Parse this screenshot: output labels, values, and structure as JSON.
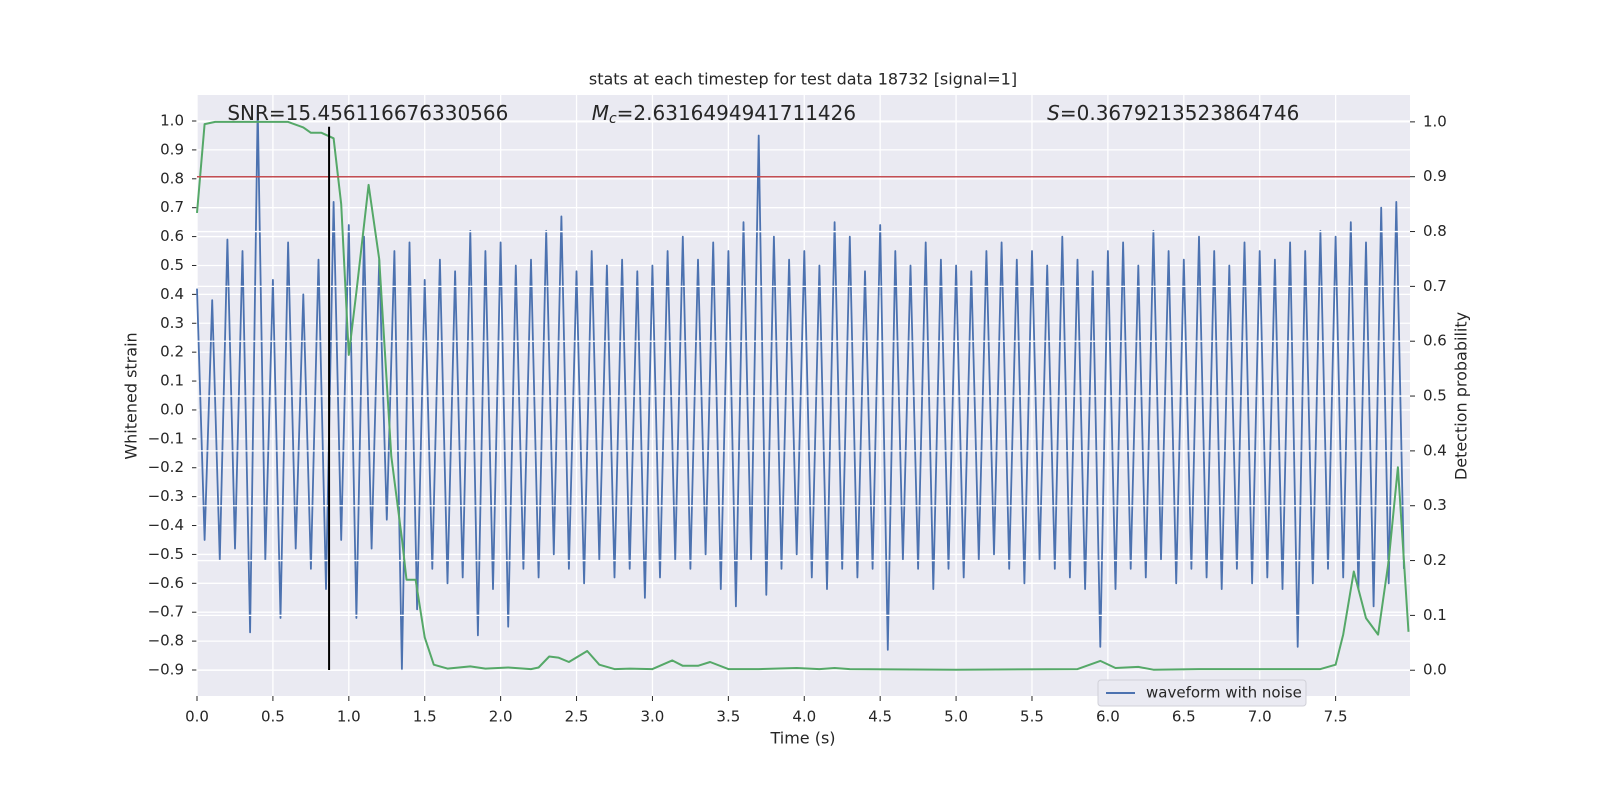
{
  "chart_data": {
    "type": "line",
    "title": "stats at each timestep for test data 18732 [signal=1]",
    "xlabel": "Time (s)",
    "ylabel": "Whitened strain",
    "y2label": "Detection probability",
    "xlim": [
      0,
      7.99
    ],
    "ylim": [
      -0.99,
      1.09
    ],
    "y2lim": [
      -0.047,
      1.049
    ],
    "grid": true,
    "legend": "lower right",
    "xticks": [
      {
        "value": 0,
        "label": "0.0"
      },
      {
        "value": 0.5,
        "label": "0.5"
      },
      {
        "value": 1,
        "label": "1.0"
      },
      {
        "value": 1.5,
        "label": "1.5"
      },
      {
        "value": 2,
        "label": "2.0"
      },
      {
        "value": 2.5,
        "label": "2.5"
      },
      {
        "value": 3,
        "label": "3.0"
      },
      {
        "value": 3.5,
        "label": "3.5"
      },
      {
        "value": 4,
        "label": "4.0"
      },
      {
        "value": 4.5,
        "label": "4.5"
      },
      {
        "value": 5,
        "label": "5.0"
      },
      {
        "value": 5.5,
        "label": "5.5"
      },
      {
        "value": 6,
        "label": "6.0"
      },
      {
        "value": 6.5,
        "label": "6.5"
      },
      {
        "value": 7,
        "label": "7.0"
      },
      {
        "value": 7.5,
        "label": "7.5"
      }
    ],
    "yticks": [
      {
        "value": -0.9,
        "label": "−0.9"
      },
      {
        "value": -0.8,
        "label": "−0.8"
      },
      {
        "value": -0.7,
        "label": "−0.7"
      },
      {
        "value": -0.6,
        "label": "−0.6"
      },
      {
        "value": -0.5,
        "label": "−0.5"
      },
      {
        "value": -0.4,
        "label": "−0.4"
      },
      {
        "value": -0.3,
        "label": "−0.3"
      },
      {
        "value": -0.2,
        "label": "−0.2"
      },
      {
        "value": -0.1,
        "label": "−0.1"
      },
      {
        "value": 0,
        "label": "0.0"
      },
      {
        "value": 0.1,
        "label": "0.1"
      },
      {
        "value": 0.2,
        "label": "0.2"
      },
      {
        "value": 0.3,
        "label": "0.3"
      },
      {
        "value": 0.4,
        "label": "0.4"
      },
      {
        "value": 0.5,
        "label": "0.5"
      },
      {
        "value": 0.6,
        "label": "0.6"
      },
      {
        "value": 0.7,
        "label": "0.7"
      },
      {
        "value": 0.8,
        "label": "0.8"
      },
      {
        "value": 0.9,
        "label": "0.9"
      },
      {
        "value": 1,
        "label": "1.0"
      }
    ],
    "y2ticks": [
      {
        "value": 0,
        "label": "0.0"
      },
      {
        "value": 0.1,
        "label": "0.1"
      },
      {
        "value": 0.2,
        "label": "0.2"
      },
      {
        "value": 0.3,
        "label": "0.3"
      },
      {
        "value": 0.4,
        "label": "0.4"
      },
      {
        "value": 0.5,
        "label": "0.5"
      },
      {
        "value": 0.6,
        "label": "0.6"
      },
      {
        "value": 0.7,
        "label": "0.7"
      },
      {
        "value": 0.8,
        "label": "0.8"
      },
      {
        "value": 0.9,
        "label": "0.9"
      },
      {
        "value": 1,
        "label": "1.0"
      }
    ],
    "series": [
      {
        "name": "waveform with noise",
        "color": "#4c72b0",
        "x": [
          0,
          0.05,
          0.1,
          0.15,
          0.2,
          0.25,
          0.3,
          0.35,
          0.4,
          0.45,
          0.5,
          0.55,
          0.6,
          0.65,
          0.7,
          0.75,
          0.8,
          0.85,
          0.9,
          0.95,
          1,
          1.05,
          1.1,
          1.15,
          1.2,
          1.25,
          1.3,
          1.35,
          1.4,
          1.45,
          1.5,
          1.55,
          1.6,
          1.65,
          1.7,
          1.75,
          1.8,
          1.85,
          1.9,
          1.95,
          2,
          2.05,
          2.1,
          2.15,
          2.2,
          2.25,
          2.3,
          2.35,
          2.4,
          2.45,
          2.5,
          2.55,
          2.6,
          2.65,
          2.7,
          2.75,
          2.8,
          2.85,
          2.9,
          2.95,
          3,
          3.05,
          3.1,
          3.15,
          3.2,
          3.25,
          3.3,
          3.35,
          3.4,
          3.45,
          3.5,
          3.55,
          3.6,
          3.65,
          3.7,
          3.75,
          3.8,
          3.85,
          3.9,
          3.95,
          4,
          4.05,
          4.1,
          4.15,
          4.2,
          4.25,
          4.3,
          4.35,
          4.4,
          4.45,
          4.5,
          4.55,
          4.6,
          4.65,
          4.7,
          4.75,
          4.8,
          4.85,
          4.9,
          4.95,
          5,
          5.05,
          5.1,
          5.15,
          5.2,
          5.25,
          5.3,
          5.35,
          5.4,
          5.45,
          5.5,
          5.55,
          5.6,
          5.65,
          5.7,
          5.75,
          5.8,
          5.85,
          5.9,
          5.95,
          6,
          6.05,
          6.1,
          6.15,
          6.2,
          6.25,
          6.3,
          6.35,
          6.4,
          6.45,
          6.5,
          6.55,
          6.6,
          6.65,
          6.7,
          6.75,
          6.8,
          6.85,
          6.9,
          6.95,
          7,
          7.05,
          7.1,
          7.15,
          7.2,
          7.25,
          7.3,
          7.35,
          7.4,
          7.45,
          7.5,
          7.55,
          7.6,
          7.65,
          7.7,
          7.75,
          7.8,
          7.85,
          7.9,
          7.95
        ],
        "values": [
          0.42,
          -0.45,
          0.38,
          -0.52,
          0.59,
          -0.48,
          0.55,
          -0.77,
          1.05,
          -0.52,
          0.45,
          -0.72,
          0.58,
          -0.48,
          0.4,
          -0.55,
          0.52,
          -0.62,
          0.72,
          -0.45,
          0.64,
          -0.72,
          0.6,
          -0.48,
          0.52,
          -0.38,
          0.55,
          -0.9,
          0.58,
          -0.69,
          0.45,
          -0.55,
          0.52,
          -0.6,
          0.48,
          -0.58,
          0.62,
          -0.78,
          0.55,
          -0.62,
          0.58,
          -0.75,
          0.5,
          -0.55,
          0.52,
          -0.58,
          0.62,
          -0.5,
          0.67,
          -0.55,
          0.48,
          -0.6,
          0.55,
          -0.52,
          0.5,
          -0.58,
          0.52,
          -0.55,
          0.48,
          -0.65,
          0.5,
          -0.58,
          0.55,
          -0.52,
          0.6,
          -0.55,
          0.52,
          -0.5,
          0.58,
          -0.62,
          0.55,
          -0.68,
          0.65,
          -0.52,
          0.95,
          -0.64,
          0.6,
          -0.55,
          0.52,
          -0.5,
          0.55,
          -0.58,
          0.5,
          -0.62,
          0.65,
          -0.55,
          0.6,
          -0.58,
          0.48,
          -0.55,
          0.64,
          -0.83,
          0.55,
          -0.52,
          0.5,
          -0.55,
          0.58,
          -0.62,
          0.52,
          -0.55,
          0.5,
          -0.58,
          0.48,
          -0.52,
          0.55,
          -0.5,
          0.58,
          -0.55,
          0.52,
          -0.6,
          0.55,
          -0.52,
          0.5,
          -0.55,
          0.6,
          -0.58,
          0.52,
          -0.62,
          0.48,
          -0.82,
          0.55,
          -0.62,
          0.58,
          -0.55,
          0.5,
          -0.58,
          0.62,
          -0.52,
          0.55,
          -0.6,
          0.52,
          -0.55,
          0.6,
          -0.58,
          0.55,
          -0.62,
          0.5,
          -0.55,
          0.58,
          -0.6,
          0.55,
          -0.58,
          0.52,
          -0.62,
          0.58,
          -0.82,
          0.55,
          -0.6,
          0.62,
          -0.55,
          0.6,
          -0.58,
          0.65,
          -0.62,
          0.58,
          -0.68,
          0.7,
          -0.6,
          0.72,
          -0.55
        ]
      },
      {
        "color": "#55a868",
        "axis": "y2",
        "x": [
          0,
          0.05,
          0.12,
          0.3,
          0.6,
          0.7,
          0.75,
          0.82,
          0.9,
          0.95,
          1,
          1.05,
          1.13,
          1.2,
          1.28,
          1.35,
          1.38,
          1.44,
          1.5,
          1.56,
          1.65,
          1.8,
          1.9,
          2.05,
          2.2,
          2.25,
          2.32,
          2.38,
          2.45,
          2.57,
          2.65,
          2.75,
          2.85,
          3,
          3.13,
          3.2,
          3.3,
          3.38,
          3.5,
          3.7,
          3.95,
          4.1,
          4.2,
          4.3,
          5,
          5.8,
          5.95,
          6.05,
          6.2,
          6.3,
          6.6,
          7.4,
          7.5,
          7.55,
          7.62,
          7.7,
          7.78,
          7.85,
          7.91,
          7.95,
          7.98
        ],
        "values": [
          0.834,
          0.996,
          1,
          1,
          1,
          0.99,
          0.98,
          0.98,
          0.97,
          0.85,
          0.575,
          0.69,
          0.885,
          0.75,
          0.39,
          0.24,
          0.165,
          0.165,
          0.06,
          0.01,
          0.003,
          0.007,
          0.003,
          0.005,
          0.002,
          0.005,
          0.025,
          0.023,
          0.015,
          0.035,
          0.01,
          0.002,
          0.003,
          0.002,
          0.018,
          0.008,
          0.008,
          0.015,
          0.002,
          0.002,
          0.004,
          0.002,
          0.004,
          0.002,
          0.001,
          0.002,
          0.017,
          0.004,
          0.006,
          0.001,
          0.002,
          0.002,
          0.01,
          0.065,
          0.18,
          0.095,
          0.065,
          0.2,
          0.37,
          0.2,
          0.07
        ]
      }
    ],
    "threshold": {
      "value": 0.9,
      "axis": "y2",
      "color": "#c44e52"
    },
    "marker": {
      "x": 0.87,
      "ymin": -0.9,
      "ymax": 0.98,
      "color": "#000000"
    },
    "annotations": [
      {
        "x": 0.2,
        "text": "SNR=15.456116676330566"
      },
      {
        "x": 2.6,
        "symbol": "M",
        "subscript": "c",
        "text": "=2.6316494941711426"
      },
      {
        "x": 5.6,
        "symbol": "S",
        "text": "=0.3679213523864746"
      }
    ]
  }
}
